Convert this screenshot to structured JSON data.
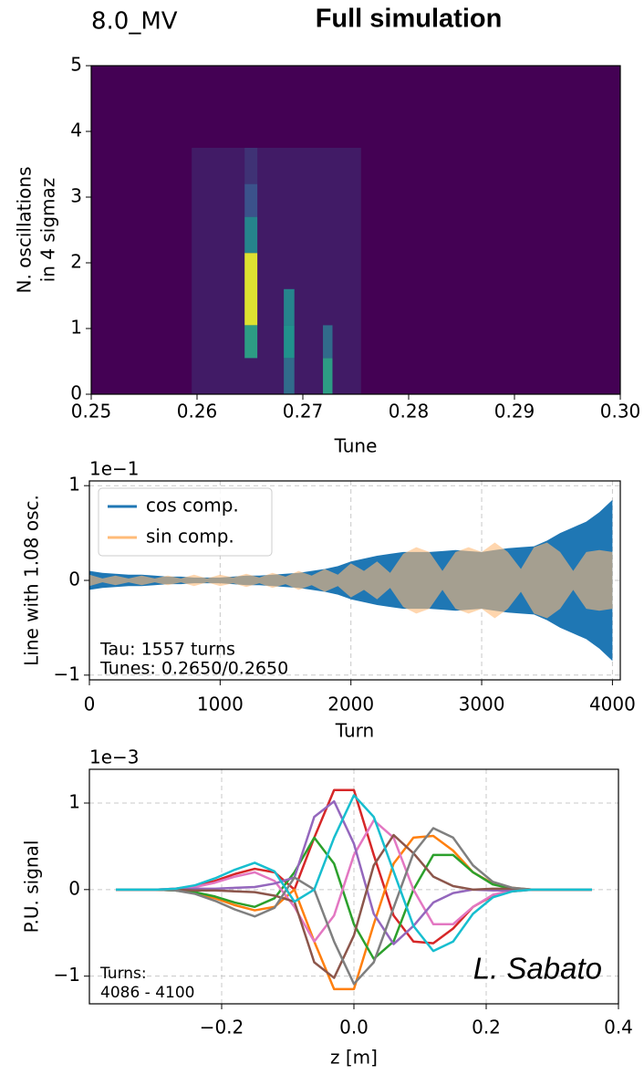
{
  "header": {
    "label": "8.0_MV",
    "title": "Full simulation"
  },
  "chart_data": [
    {
      "type": "heatmap",
      "colormap": "viridis",
      "xlabel": "Tune",
      "ylabel": [
        "N. oscillations",
        "in 4 sigmaz"
      ],
      "xlim": [
        0.25,
        0.3
      ],
      "xticks": [
        0.25,
        0.26,
        0.27,
        0.28,
        0.29,
        {
          "value": 0.3,
          "label": "0.30"
        }
      ],
      "ylim": [
        0,
        5
      ],
      "yticks": [
        0,
        1,
        2,
        3,
        4,
        5
      ],
      "stripes": [
        {
          "x": [
            0.2595,
            0.2755
          ],
          "y": [
            0,
            3.75
          ],
          "value": 0.08
        },
        {
          "x": [
            0.2645,
            0.2657
          ],
          "y": [
            1.05,
            2.15
          ],
          "value": 0.95
        },
        {
          "x": [
            0.2645,
            0.2657
          ],
          "y": [
            0.55,
            1.05
          ],
          "value": 0.55
        },
        {
          "x": [
            0.2645,
            0.2657
          ],
          "y": [
            2.15,
            2.7
          ],
          "value": 0.45
        },
        {
          "x": [
            0.2645,
            0.2657
          ],
          "y": [
            2.7,
            3.2
          ],
          "value": 0.25
        },
        {
          "x": [
            0.2645,
            0.2657
          ],
          "y": [
            3.2,
            3.75
          ],
          "value": 0.15
        },
        {
          "x": [
            0.2682,
            0.2692
          ],
          "y": [
            1.05,
            1.6
          ],
          "value": 0.45
        },
        {
          "x": [
            0.2682,
            0.2692
          ],
          "y": [
            0.55,
            1.05
          ],
          "value": 0.5
        },
        {
          "x": [
            0.2682,
            0.2692
          ],
          "y": [
            0,
            0.55
          ],
          "value": 0.35
        },
        {
          "x": [
            0.2719,
            0.2728
          ],
          "y": [
            0,
            0.55
          ],
          "value": 0.55
        },
        {
          "x": [
            0.2719,
            0.2728
          ],
          "y": [
            0.55,
            1.05
          ],
          "value": 0.35
        }
      ]
    },
    {
      "type": "area",
      "xlabel": "Turn",
      "ylabel": "Line with 1.08 osc.",
      "offset_label": "1e−1",
      "grid": true,
      "legend": "upper left",
      "xlim": [
        0,
        4060
      ],
      "xticks": [
        0,
        1000,
        2000,
        3000,
        4000
      ],
      "ylim": [
        -1.05,
        1.05
      ],
      "yticks": [
        {
          "value": -1,
          "label": "−1"
        },
        0,
        1
      ],
      "annotations": [
        "Tau: 1557 turns",
        "Tunes: 0.2650/0.2650"
      ],
      "x": [
        0,
        100,
        200,
        300,
        400,
        500,
        600,
        700,
        800,
        900,
        1000,
        1100,
        1200,
        1300,
        1400,
        1500,
        1600,
        1700,
        1800,
        1900,
        2000,
        2100,
        2200,
        2300,
        2400,
        2500,
        2600,
        2700,
        2800,
        2900,
        3000,
        3100,
        3200,
        3300,
        3400,
        3500,
        3600,
        3700,
        3800,
        3900,
        4000
      ],
      "series": [
        {
          "name": "cos comp.",
          "color": "#1f77b4",
          "values": [
            0.1,
            0.08,
            0.07,
            0.06,
            0.06,
            0.05,
            0.04,
            0.04,
            0.03,
            0.03,
            0.03,
            0.04,
            0.05,
            0.05,
            0.06,
            0.07,
            0.08,
            0.1,
            0.12,
            0.15,
            0.2,
            0.23,
            0.26,
            0.28,
            0.3,
            0.3,
            0.3,
            0.31,
            0.32,
            0.31,
            0.3,
            0.32,
            0.34,
            0.35,
            0.36,
            0.42,
            0.5,
            0.56,
            0.62,
            0.72,
            0.85
          ]
        },
        {
          "name": "sin comp.",
          "color": "#ffbb78",
          "values": [
            0.06,
            0.02,
            0.05,
            0.02,
            0.05,
            0.02,
            0.05,
            0.02,
            0.06,
            0.02,
            0.06,
            0.03,
            0.07,
            0.03,
            0.08,
            0.04,
            0.1,
            0.05,
            0.12,
            0.06,
            0.18,
            0.1,
            0.2,
            0.08,
            0.28,
            0.35,
            0.3,
            0.1,
            0.3,
            0.35,
            0.3,
            0.4,
            0.3,
            0.12,
            0.35,
            0.4,
            0.3,
            0.1,
            0.3,
            0.32,
            0.3
          ]
        }
      ]
    },
    {
      "type": "line",
      "xlabel": "z [m]",
      "ylabel": "P.U. signal",
      "offset_label": "1e−3",
      "grid": true,
      "xlim": [
        -0.4,
        0.4
      ],
      "xticks": [
        {
          "value": -0.2,
          "label": "−0.2"
        },
        {
          "value": 0,
          "label": "0.0"
        },
        0.2,
        0.4
      ],
      "ylim": [
        -1.32,
        1.39
      ],
      "yticks": [
        {
          "value": -1,
          "label": "−1"
        },
        0,
        1
      ],
      "annotations": [
        "Turns:",
        "4086 - 4100"
      ],
      "signature": "L. Sabato",
      "x": [
        -0.36,
        -0.33,
        -0.3,
        -0.27,
        -0.24,
        -0.21,
        -0.18,
        -0.15,
        -0.12,
        -0.09,
        -0.06,
        -0.03,
        0,
        0.03,
        0.06,
        0.09,
        0.12,
        0.15,
        0.18,
        0.21,
        0.24,
        0.27,
        0.3,
        0.33,
        0.36
      ],
      "series": [
        {
          "color": "#d62728",
          "values": [
            0,
            0,
            0,
            0.01,
            0.04,
            0.1,
            0.18,
            0.24,
            0.2,
            0,
            0.6,
            1.15,
            1.15,
            0.4,
            -0.3,
            -0.6,
            -0.62,
            -0.45,
            -0.2,
            -0.07,
            -0.02,
            0,
            0,
            0,
            0
          ]
        },
        {
          "color": "#ff7f0e",
          "values": [
            0,
            0,
            0,
            -0.01,
            -0.04,
            -0.1,
            -0.18,
            -0.24,
            -0.2,
            0,
            -0.6,
            -1.15,
            -1.15,
            -0.4,
            0.3,
            0.6,
            0.62,
            0.45,
            0.2,
            0.07,
            0.02,
            0,
            0,
            0,
            0
          ]
        },
        {
          "color": "#2ca02c",
          "values": [
            0,
            0,
            0,
            -0.01,
            -0.03,
            -0.08,
            -0.15,
            -0.2,
            -0.1,
            0.2,
            0.6,
            0.3,
            -0.4,
            -0.8,
            -0.6,
            0,
            0.4,
            0.4,
            0.2,
            0.06,
            0.01,
            0,
            0,
            0,
            0
          ]
        },
        {
          "color": "#e377c2",
          "values": [
            0,
            0,
            0,
            0.01,
            0.03,
            0.08,
            0.15,
            0.2,
            0.1,
            -0.2,
            -0.6,
            -0.3,
            0.4,
            0.8,
            0.6,
            0,
            -0.4,
            -0.4,
            -0.2,
            -0.06,
            -0.01,
            0,
            0,
            0,
            0
          ]
        },
        {
          "color": "#9467bd",
          "values": [
            0,
            0,
            0,
            0,
            0.01,
            0.01,
            0.02,
            0.03,
            0.07,
            0.14,
            0.84,
            1.02,
            0.53,
            -0.28,
            -0.63,
            -0.42,
            -0.15,
            -0.04,
            0,
            -0.01,
            -0.01,
            0,
            0,
            0,
            0
          ]
        },
        {
          "color": "#8c564b",
          "values": [
            0,
            0,
            0,
            0,
            -0.01,
            -0.01,
            -0.02,
            -0.03,
            -0.07,
            -0.14,
            -0.84,
            -1.02,
            -0.53,
            0.28,
            0.63,
            0.42,
            0.15,
            0.04,
            0,
            0.01,
            0.01,
            0,
            0,
            0,
            0
          ]
        },
        {
          "color": "#7f7f7f",
          "values": [
            0,
            0,
            0,
            -0.01,
            -0.05,
            -0.13,
            -0.23,
            -0.31,
            -0.21,
            0.14,
            0,
            -0.6,
            -1.09,
            -0.84,
            -0.21,
            0.42,
            0.71,
            0.6,
            0.28,
            0.09,
            0.02,
            0,
            0,
            0,
            0
          ]
        },
        {
          "color": "#17becf",
          "values": [
            0,
            0,
            0,
            0.01,
            0.05,
            0.13,
            0.23,
            0.31,
            0.21,
            -0.14,
            0,
            0.6,
            1.09,
            0.84,
            0.21,
            -0.42,
            -0.71,
            -0.6,
            -0.28,
            -0.09,
            -0.02,
            0,
            0,
            0,
            0
          ]
        }
      ]
    }
  ]
}
